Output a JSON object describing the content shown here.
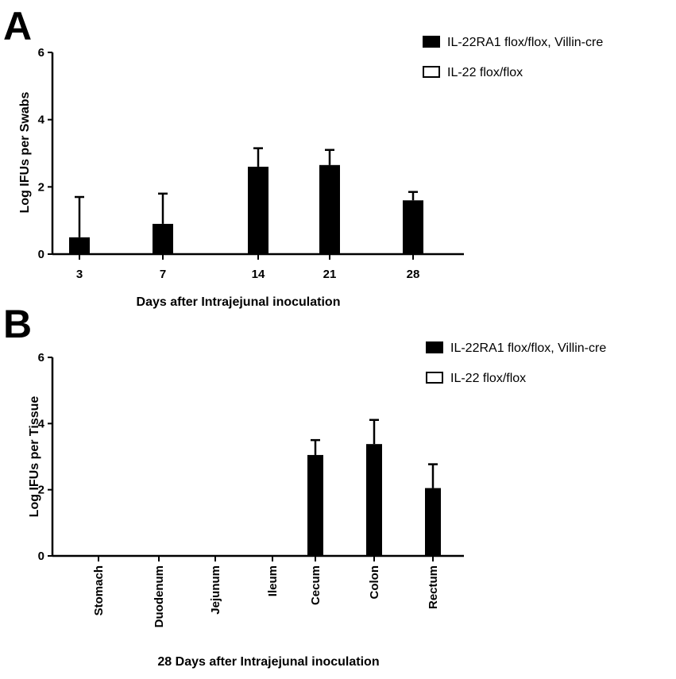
{
  "colors": {
    "filled": "#000000",
    "open": "#ffffff",
    "axis": "#000000"
  },
  "chart_data": [
    {
      "panel": "A",
      "type": "bar",
      "xlabel": "Days after Intrajejunal inoculation",
      "ylabel": "Log IFUs per Swabs",
      "ylim": [
        0,
        6
      ],
      "yticks": [
        "0",
        "2",
        "4",
        "6"
      ],
      "categories": [
        "3",
        "7",
        "14",
        "21",
        "28"
      ],
      "legend_position": "top-right",
      "series": [
        {
          "name": "IL-22RA1 flox/flox,  Villin-cre",
          "fill": "filled",
          "values": [
            0.5,
            0.9,
            2.6,
            2.65,
            1.6
          ],
          "error": [
            1.2,
            0.9,
            0.55,
            0.45,
            0.25
          ]
        },
        {
          "name": "IL-22 flox/flox",
          "fill": "open",
          "values": [
            0,
            0,
            0,
            0,
            0
          ],
          "error": [
            0,
            0,
            0,
            0,
            0
          ]
        }
      ]
    },
    {
      "panel": "B",
      "type": "bar",
      "xlabel": "28 Days after Intrajejunal inoculation",
      "ylabel": "Log IFUs per Tissue",
      "ylim": [
        0,
        6
      ],
      "yticks": [
        "0",
        "2",
        "4",
        "6"
      ],
      "categories": [
        "Stomach",
        "Duodenum",
        "Jejunum",
        "Ileum",
        "Cecum",
        "Colon",
        "Rectum"
      ],
      "legend_position": "top-right",
      "series": [
        {
          "name": "IL-22RA1 flox/flox,  Villin-cre",
          "fill": "filled",
          "values": [
            0,
            0,
            0,
            0,
            3.05,
            3.38,
            2.05
          ],
          "error": [
            0,
            0,
            0,
            0,
            0.45,
            0.73,
            0.72
          ]
        },
        {
          "name": "IL-22 flox/flox",
          "fill": "open",
          "values": [
            0,
            0,
            0,
            0,
            0,
            0,
            0
          ],
          "error": [
            0,
            0,
            0,
            0,
            0,
            0,
            0
          ]
        }
      ]
    }
  ]
}
